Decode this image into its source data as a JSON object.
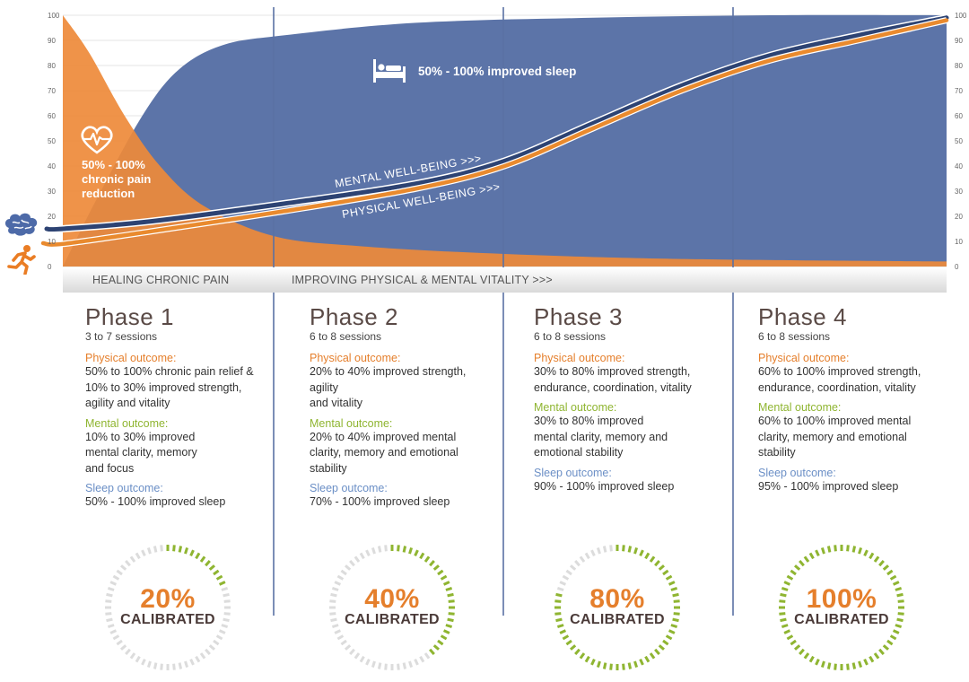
{
  "chart_data": {
    "type": "area",
    "ylim": [
      0,
      100
    ],
    "left_ticks": [
      "100",
      "90",
      "80",
      "70",
      "60",
      "50",
      "40",
      "30",
      "20",
      "10",
      "0"
    ],
    "right_ticks": [
      "100",
      "90",
      "80",
      "70",
      "60",
      "50",
      "40",
      "30",
      "20",
      "10",
      "0"
    ],
    "series": [
      {
        "name": "Sleep improvement",
        "values": [
          [
            0,
            0
          ],
          [
            4,
            28
          ],
          [
            9,
            60
          ],
          [
            13,
            78
          ],
          [
            18,
            88
          ],
          [
            25,
            92
          ],
          [
            40,
            97
          ],
          [
            60,
            99
          ],
          [
            80,
            100
          ],
          [
            100,
            100
          ]
        ]
      },
      {
        "name": "Chronic pain",
        "values": [
          [
            0,
            100
          ],
          [
            3,
            85
          ],
          [
            7,
            60
          ],
          [
            11,
            40
          ],
          [
            16,
            24
          ],
          [
            24,
            12
          ],
          [
            34,
            8
          ],
          [
            50,
            5
          ],
          [
            70,
            3
          ],
          [
            100,
            2
          ]
        ]
      },
      {
        "name": "MENTAL WELL-BEING >>>",
        "values": [
          [
            0,
            15
          ],
          [
            10,
            18
          ],
          [
            25,
            25
          ],
          [
            40,
            33
          ],
          [
            50,
            42
          ],
          [
            60,
            57
          ],
          [
            70,
            72
          ],
          [
            80,
            84
          ],
          [
            90,
            92
          ],
          [
            100,
            99
          ]
        ]
      },
      {
        "name": "PHYSICAL WELL-BEING >>>",
        "values": [
          [
            0,
            9
          ],
          [
            10,
            14
          ],
          [
            25,
            22
          ],
          [
            40,
            31
          ],
          [
            50,
            40
          ],
          [
            60,
            55
          ],
          [
            70,
            70
          ],
          [
            80,
            82
          ],
          [
            90,
            90
          ],
          [
            100,
            98
          ]
        ]
      }
    ],
    "annotations": {
      "sleep": "50% - 100%  improved sleep",
      "pain": "50% - 100%\nchronic pain\nreduction",
      "mental": "MENTAL WELL-BEING >>>",
      "physical": "PHYSICAL WELL-BEING >>>"
    }
  },
  "colors": {
    "blue_area": "#5c74a8",
    "orange_area": "#ee8a3a",
    "mental_line": "#2d4373",
    "physical_line": "#e98a2e",
    "gauge_green": "#8fb531",
    "gauge_gray": "#dcdcdc"
  },
  "icons": {
    "left_top": "brain-icon",
    "left_bottom": "running-icon",
    "pain": "heart-pulse-icon",
    "sleep": "bed-icon"
  },
  "bands": {
    "left": "HEALING CHRONIC PAIN",
    "right": "IMPROVING  PHYSICAL & MENTAL VITALITY >>>"
  },
  "phases": [
    {
      "title": "Phase 1",
      "sessions": "3 to 7 sessions",
      "physical_label": "Physical outcome:",
      "physical_text": "50% to 100% chronic pain relief &\n10% to 30% improved strength,\nagility and vitality",
      "mental_label": "Mental outcome:",
      "mental_text": "10% to 30% improved\nmental clarity, memory\nand focus",
      "sleep_label": "Sleep outcome:",
      "sleep_text": "50% - 100% improved sleep",
      "calibrated_pct": "20%",
      "calibrated_label": "CALIBRATED",
      "calibrated_fraction": 0.2
    },
    {
      "title": "Phase 2",
      "sessions": "6 to 8 sessions",
      "physical_label": "Physical outcome:",
      "physical_text": "20% to 40% improved strength,\nagility\nand vitality",
      "mental_label": "Mental outcome:",
      "mental_text": "20% to 40% improved mental\nclarity, memory and emotional\nstability",
      "sleep_label": "Sleep outcome:",
      "sleep_text": "70% - 100% improved sleep",
      "calibrated_pct": "40%",
      "calibrated_label": "CALIBRATED",
      "calibrated_fraction": 0.4
    },
    {
      "title": "Phase 3",
      "sessions": "6 to 8 sessions",
      "physical_label": "Physical outcome:",
      "physical_text": "30% to 80% improved strength,\nendurance, coordination, vitality",
      "mental_label": "Mental outcome:",
      "mental_text": "30% to 80% improved\nmental clarity, memory and\nemotional stability",
      "sleep_label": "Sleep outcome:",
      "sleep_text": "90% - 100% improved sleep",
      "calibrated_pct": "80%",
      "calibrated_label": "CALIBRATED",
      "calibrated_fraction": 0.8
    },
    {
      "title": "Phase 4",
      "sessions": "6 to 8 sessions",
      "physical_label": "Physical outcome:",
      "physical_text": "60% to 100% improved strength,\nendurance, coordination, vitality",
      "mental_label": "Mental outcome:",
      "mental_text": "60% to 100% improved mental\nclarity, memory and emotional\nstability",
      "sleep_label": "Sleep outcome:",
      "sleep_text": "95% - 100% improved sleep",
      "calibrated_pct": "100%",
      "calibrated_label": "CALIBRATED",
      "calibrated_fraction": 1.0
    }
  ]
}
